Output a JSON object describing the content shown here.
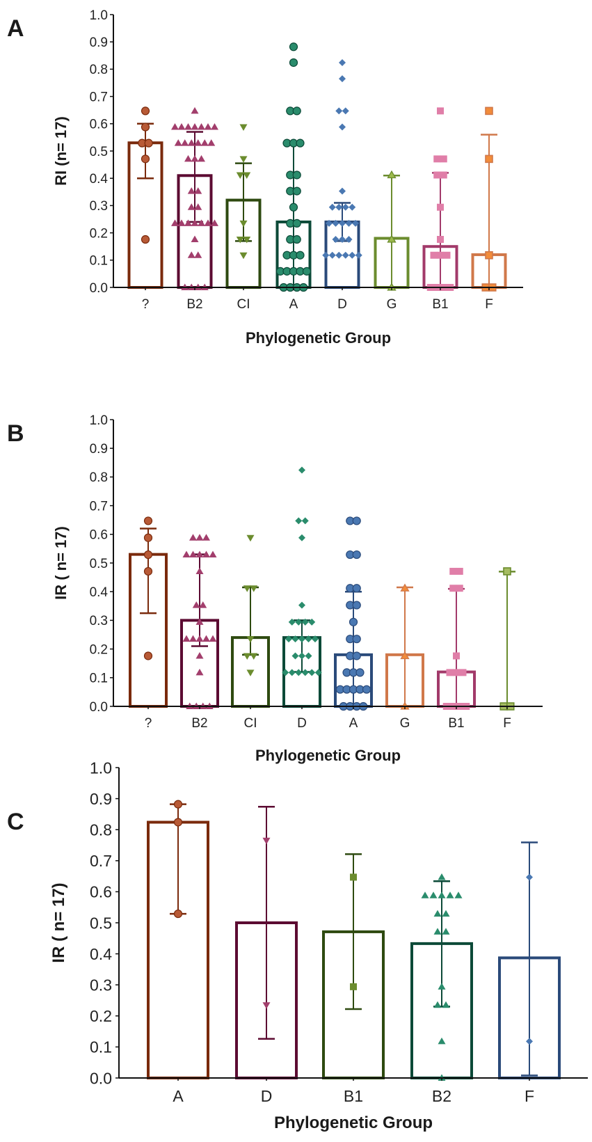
{
  "chart_data": [
    {
      "type": "bar",
      "panel": "A",
      "xlabel": "Phylogenetic  Group",
      "ylabel": "RI  (n= 17)",
      "ylim": [
        0,
        1.0
      ],
      "yticks": [
        "0.0",
        "0.1",
        "0.2",
        "0.3",
        "0.4",
        "0.5",
        "0.6",
        "0.7",
        "0.8",
        "0.9",
        "1.0"
      ],
      "categories": [
        "?",
        "B2",
        "CI",
        "A",
        "D",
        "G",
        "B1",
        "F"
      ],
      "series": [
        {
          "name": "?",
          "mean": 0.53,
          "err": [
            0.4,
            0.6
          ],
          "marker": "circle",
          "bar_color": "#7a2a0c",
          "point_color": "#b85a36",
          "points": [
            0.647,
            0.588,
            0.529,
            0.529,
            0.471,
            0.176
          ]
        },
        {
          "name": "B2",
          "mean": 0.41,
          "err": [
            0.24,
            0.57
          ],
          "marker": "triangle",
          "bar_color": "#5c0b32",
          "point_color": "#a23e6c",
          "points": [
            0.647,
            0.588,
            0.588,
            0.588,
            0.588,
            0.588,
            0.588,
            0.588,
            0.529,
            0.529,
            0.529,
            0.529,
            0.529,
            0.529,
            0.471,
            0.471,
            0.471,
            0.353,
            0.353,
            0.294,
            0.294,
            0.235,
            0.235,
            0.235,
            0.235,
            0.235,
            0.235,
            0.235,
            0.176,
            0.118,
            0.118,
            0,
            0,
            0,
            0
          ]
        },
        {
          "name": "CI",
          "mean": 0.32,
          "err": [
            0.17,
            0.455
          ],
          "marker": "triangle-down",
          "bar_color": "#2e4a10",
          "point_color": "#6b8c2e",
          "points": [
            0.588,
            0.471,
            0.412,
            0.412,
            0.235,
            0.176,
            0.176,
            0.118
          ]
        },
        {
          "name": "A",
          "mean": 0.24,
          "err": [
            0,
            0.53
          ],
          "marker": "circle",
          "bar_color": "#0c4a38",
          "point_color": "#2a8c6c",
          "points": [
            0.882,
            0.824,
            0.647,
            0.647,
            0.529,
            0.529,
            0.529,
            0.412,
            0.412,
            0.353,
            0.353,
            0.294,
            0.235,
            0.235,
            0.176,
            0.176,
            0.118,
            0.118,
            0.118,
            0.059,
            0.059,
            0.059,
            0.059,
            0.059,
            0,
            0,
            0,
            0
          ]
        },
        {
          "name": "D",
          "mean": 0.24,
          "err": [
            0.17,
            0.31
          ],
          "marker": "diamond",
          "bar_color": "#2a4a7a",
          "point_color": "#4a78b2",
          "points": [
            0.824,
            0.765,
            0.647,
            0.647,
            0.588,
            0.353,
            0.294,
            0.294,
            0.294,
            0.294,
            0.235,
            0.235,
            0.235,
            0.235,
            0.235,
            0.176,
            0.176,
            0.176,
            0.118,
            0.118,
            0.118,
            0.118,
            0.118,
            0.118
          ]
        },
        {
          "name": "G",
          "mean": 0.18,
          "err": [
            0,
            0.41
          ],
          "marker": "triangle-open",
          "bar_color": "#6b8c2e",
          "point_color": "#9cba4c",
          "points": [
            0.412,
            0.176,
            0
          ]
        },
        {
          "name": "B1",
          "mean": 0.15,
          "err": [
            0,
            0.42
          ],
          "marker": "square",
          "bar_color": "#a23a6a",
          "point_color": "#e07ea8",
          "points": [
            0.647,
            0.471,
            0.471,
            0.412,
            0.412,
            0.294,
            0.176,
            0.118,
            0.118,
            0.118,
            0,
            0,
            0,
            0
          ]
        },
        {
          "name": "F",
          "mean": 0.12,
          "err": [
            0,
            0.56
          ],
          "marker": "square-open",
          "bar_color": "#d0784a",
          "point_color": "#f28c3a",
          "points": [
            0.647,
            0.471,
            0.118,
            0,
            0
          ]
        }
      ]
    },
    {
      "type": "bar",
      "panel": "B",
      "xlabel": "Phylogenetic  Group",
      "ylabel": "IR ( n= 17)",
      "ylim": [
        0,
        1.0
      ],
      "yticks": [
        "0.0",
        "0.1",
        "0.2",
        "0.3",
        "0.4",
        "0.5",
        "0.6",
        "0.7",
        "0.8",
        "0.9",
        "1.0"
      ],
      "categories": [
        "?",
        "B2",
        "CI",
        "D",
        "A",
        "G",
        "B1",
        "F"
      ],
      "series": [
        {
          "name": "?",
          "mean": 0.53,
          "err": [
            0.325,
            0.62
          ],
          "marker": "circle",
          "bar_color": "#7a2a0c",
          "point_color": "#b85a36",
          "points": [
            0.647,
            0.588,
            0.529,
            0.471,
            0.176
          ]
        },
        {
          "name": "B2",
          "mean": 0.3,
          "err": [
            0.21,
            0.53
          ],
          "marker": "triangle",
          "bar_color": "#5c0b32",
          "point_color": "#a23e6c",
          "points": [
            0.588,
            0.588,
            0.588,
            0.529,
            0.529,
            0.529,
            0.529,
            0.529,
            0.471,
            0.353,
            0.353,
            0.294,
            0.235,
            0.235,
            0.235,
            0.235,
            0.235,
            0.176,
            0.118,
            0,
            0,
            0,
            0
          ]
        },
        {
          "name": "CI",
          "mean": 0.24,
          "err": [
            0.18,
            0.415
          ],
          "marker": "triangle-down",
          "bar_color": "#2e4a10",
          "point_color": "#6b8c2e",
          "points": [
            0.588,
            0.412,
            0.412,
            0.235,
            0.176,
            0.176,
            0.118
          ]
        },
        {
          "name": "D",
          "mean": 0.24,
          "err": [
            0.12,
            0.3
          ],
          "marker": "diamond",
          "bar_color": "#0c4a38",
          "point_color": "#2a8c6c",
          "points": [
            0.824,
            0.647,
            0.647,
            0.588,
            0.353,
            0.294,
            0.294,
            0.294,
            0.294,
            0.235,
            0.235,
            0.235,
            0.235,
            0.235,
            0.176,
            0.176,
            0.176,
            0.118,
            0.118,
            0.118,
            0.118,
            0.118,
            0.118
          ]
        },
        {
          "name": "A",
          "mean": 0.18,
          "err": [
            0,
            0.4
          ],
          "marker": "circle",
          "bar_color": "#2a4a7a",
          "point_color": "#4a78b2",
          "points": [
            0.647,
            0.647,
            0.529,
            0.529,
            0.412,
            0.412,
            0.353,
            0.353,
            0.294,
            0.235,
            0.235,
            0.176,
            0.176,
            0.118,
            0.118,
            0.118,
            0.059,
            0.059,
            0.059,
            0.059,
            0.059,
            0,
            0,
            0,
            0
          ]
        },
        {
          "name": "G",
          "mean": 0.18,
          "err": [
            0,
            0.415
          ],
          "marker": "triangle-orange",
          "bar_color": "#d0784a",
          "point_color": "#f28c3a",
          "points": [
            0.412,
            0.176,
            0
          ]
        },
        {
          "name": "B1",
          "mean": 0.12,
          "err": [
            0,
            0.41
          ],
          "marker": "square",
          "bar_color": "#a23a6a",
          "point_color": "#e07ea8",
          "points": [
            0.471,
            0.471,
            0.412,
            0.412,
            0.176,
            0.118,
            0.118,
            0.118,
            0,
            0,
            0,
            0
          ]
        },
        {
          "name": "F",
          "mean": 0,
          "err": [
            0,
            0.47
          ],
          "marker": "square-open",
          "bar_color": "#6b8c2e",
          "point_color": "#a6bc62",
          "points": [
            0.471,
            0,
            0
          ]
        }
      ]
    },
    {
      "type": "bar",
      "panel": "C",
      "xlabel": "Phylogenetic  Group",
      "ylabel": "IR ( n= 17)",
      "ylim": [
        0,
        1.0
      ],
      "yticks": [
        "0.0",
        "0.1",
        "0.2",
        "0.3",
        "0.4",
        "0.5",
        "0.6",
        "0.7",
        "0.8",
        "0.9",
        "1.0"
      ],
      "categories": [
        "A",
        "D",
        "B1",
        "B2",
        "F"
      ],
      "series": [
        {
          "name": "A",
          "mean": 0.824,
          "err": [
            0.529,
            0.882
          ],
          "marker": "circle",
          "bar_color": "#7a2a0c",
          "point_color": "#b85a36",
          "points": [
            0.882,
            0.824,
            0.529
          ]
        },
        {
          "name": "D",
          "mean": 0.5,
          "err": [
            0.126,
            0.874
          ],
          "marker": "triangle-down",
          "bar_color": "#5c0b32",
          "point_color": "#a23e6c",
          "points": [
            0.765,
            0.235
          ]
        },
        {
          "name": "B1",
          "mean": 0.471,
          "err": [
            0.222,
            0.721
          ],
          "marker": "square",
          "bar_color": "#2e4a10",
          "point_color": "#6b8c2e",
          "points": [
            0.647,
            0.294
          ]
        },
        {
          "name": "B2",
          "mean": 0.433,
          "err": [
            0.23,
            0.634
          ],
          "marker": "triangle",
          "bar_color": "#0c4a38",
          "point_color": "#2a8c6c",
          "points": [
            0.647,
            0.588,
            0.588,
            0.588,
            0.588,
            0.588,
            0.529,
            0.529,
            0.471,
            0.471,
            0.294,
            0.235,
            0.235,
            0.118,
            0
          ]
        },
        {
          "name": "F",
          "mean": 0.387,
          "err": [
            0.008,
            0.759
          ],
          "marker": "diamond",
          "bar_color": "#2a4a7a",
          "point_color": "#4a78b2",
          "points": [
            0.647,
            0.118
          ]
        }
      ]
    }
  ]
}
